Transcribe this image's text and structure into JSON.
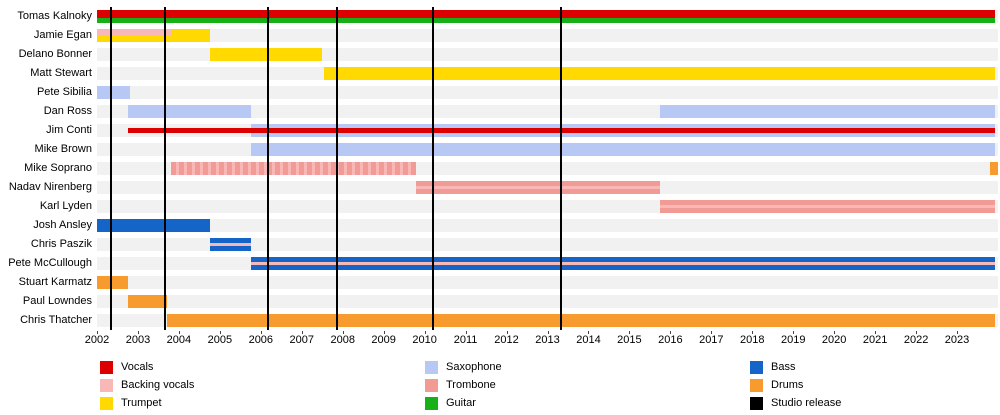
{
  "chart_data": {
    "type": "timeline",
    "description": "Band members timeline (gantt-style) with instrument roles and studio release markers",
    "x_axis": {
      "min": 2002,
      "max": 2024,
      "ticks": [
        2002,
        2003,
        2004,
        2005,
        2006,
        2007,
        2008,
        2009,
        2010,
        2011,
        2012,
        2013,
        2014,
        2015,
        2016,
        2017,
        2018,
        2019,
        2020,
        2021,
        2022,
        2023
      ]
    },
    "colors": {
      "vocals": "#dd0000",
      "backing_vocals": "#f8b8b8",
      "trumpet": "#ffd900",
      "saxophone": "#b7c8f4",
      "trombone": "#f19b94",
      "guitar": "#17b117",
      "bass": "#1565c8",
      "drums": "#f79b2e",
      "studio_release": "#000000",
      "row_track": "#f1f1f1"
    },
    "members": [
      {
        "name": "Tomas Kalnoky",
        "bars": [
          {
            "role": "vocals",
            "start": 2002,
            "end": 2023.92,
            "top": 0,
            "h": 0.62
          },
          {
            "role": "guitar",
            "start": 2002,
            "end": 2023.92,
            "top": 0.62,
            "h": 0.38
          }
        ]
      },
      {
        "name": "Jamie Egan",
        "bars": [
          {
            "role": "trumpet",
            "start": 2002,
            "end": 2004.75,
            "top": 0,
            "h": 1
          },
          {
            "role": "backing_vocals",
            "start": 2002,
            "end": 2003.8,
            "top": 0,
            "h": 0.55
          }
        ]
      },
      {
        "name": "Delano Bonner",
        "bars": [
          {
            "role": "trumpet",
            "start": 2004.75,
            "end": 2007.5,
            "top": 0,
            "h": 1
          }
        ]
      },
      {
        "name": "Matt Stewart",
        "bars": [
          {
            "role": "trumpet",
            "start": 2007.55,
            "end": 2023.92,
            "top": 0,
            "h": 1
          }
        ]
      },
      {
        "name": "Pete Sibilia",
        "bars": [
          {
            "role": "saxophone",
            "start": 2002,
            "end": 2002.8,
            "top": 0,
            "h": 1
          }
        ]
      },
      {
        "name": "Dan Ross",
        "bars": [
          {
            "role": "saxophone",
            "start": 2002.75,
            "end": 2005.75,
            "top": 0,
            "h": 1
          },
          {
            "role": "saxophone",
            "start": 2015.75,
            "end": 2023.92,
            "top": 0,
            "h": 1
          }
        ]
      },
      {
        "name": "Jim Conti",
        "bars": [
          {
            "role": "saxophone",
            "start": 2005.75,
            "end": 2023.92,
            "top": 0,
            "h": 1
          },
          {
            "role": "vocals",
            "start": 2002.75,
            "end": 2023.92,
            "top": 0.3,
            "h": 0.4
          }
        ]
      },
      {
        "name": "Mike Brown",
        "bars": [
          {
            "role": "saxophone",
            "start": 2005.75,
            "end": 2023.92,
            "top": 0,
            "h": 1
          }
        ]
      },
      {
        "name": "Mike Soprano",
        "bars": [
          {
            "role": "trombone",
            "start": 2003.8,
            "end": 2009.8,
            "top": 0,
            "h": 1,
            "pattern": "hatch"
          },
          {
            "role": "drums",
            "start": 2023.8,
            "end": 2024,
            "top": 0,
            "h": 1
          }
        ]
      },
      {
        "name": "Nadav Nirenberg",
        "bars": [
          {
            "role": "trombone",
            "start": 2009.8,
            "end": 2015.75,
            "top": 0,
            "h": 1
          },
          {
            "role": "backing_vocals",
            "start": 2009.8,
            "end": 2015.75,
            "top": 0.36,
            "h": 0.28
          }
        ]
      },
      {
        "name": "Karl Lyden",
        "bars": [
          {
            "role": "trombone",
            "start": 2015.75,
            "end": 2023.92,
            "top": 0,
            "h": 1
          },
          {
            "role": "backing_vocals",
            "start": 2015.75,
            "end": 2023.92,
            "top": 0.36,
            "h": 0.28
          }
        ]
      },
      {
        "name": "Josh Ansley",
        "bars": [
          {
            "role": "bass",
            "start": 2002,
            "end": 2004.75,
            "top": 0,
            "h": 1
          }
        ]
      },
      {
        "name": "Chris Paszik",
        "bars": [
          {
            "role": "bass",
            "start": 2004.75,
            "end": 2005.75,
            "top": 0,
            "h": 1
          },
          {
            "role": "backing_vocals",
            "start": 2004.75,
            "end": 2005.75,
            "top": 0.36,
            "h": 0.28
          }
        ]
      },
      {
        "name": "Pete McCullough",
        "bars": [
          {
            "role": "bass",
            "start": 2005.75,
            "end": 2023.92,
            "top": 0,
            "h": 1
          },
          {
            "role": "backing_vocals",
            "start": 2005.75,
            "end": 2023.92,
            "top": 0.36,
            "h": 0.28
          }
        ]
      },
      {
        "name": "Stuart Karmatz",
        "bars": [
          {
            "role": "drums",
            "start": 2002,
            "end": 2002.75,
            "top": 0,
            "h": 1
          }
        ]
      },
      {
        "name": "Paul Lowndes",
        "bars": [
          {
            "role": "drums",
            "start": 2002.75,
            "end": 2003.7,
            "top": 0,
            "h": 1
          }
        ]
      },
      {
        "name": "Chris Thatcher",
        "bars": [
          {
            "role": "drums",
            "start": 2003.7,
            "end": 2023.92,
            "top": 0,
            "h": 1
          }
        ]
      }
    ],
    "releases": [
      2002.35,
      2003.65,
      2006.18,
      2007.87,
      2010.2,
      2013.33
    ]
  },
  "legend": {
    "columns": [
      {
        "items": [
          {
            "label": "Vocals",
            "role": "vocals"
          },
          {
            "label": "Backing vocals",
            "role": "backing_vocals"
          },
          {
            "label": "Trumpet",
            "role": "trumpet"
          }
        ]
      },
      {
        "items": [
          {
            "label": "Saxophone",
            "role": "saxophone"
          },
          {
            "label": "Trombone",
            "role": "trombone"
          },
          {
            "label": "Guitar",
            "role": "guitar"
          }
        ]
      },
      {
        "items": [
          {
            "label": "Bass",
            "role": "bass"
          },
          {
            "label": "Drums",
            "role": "drums"
          },
          {
            "label": "Studio release",
            "role": "studio_release"
          }
        ]
      }
    ]
  }
}
